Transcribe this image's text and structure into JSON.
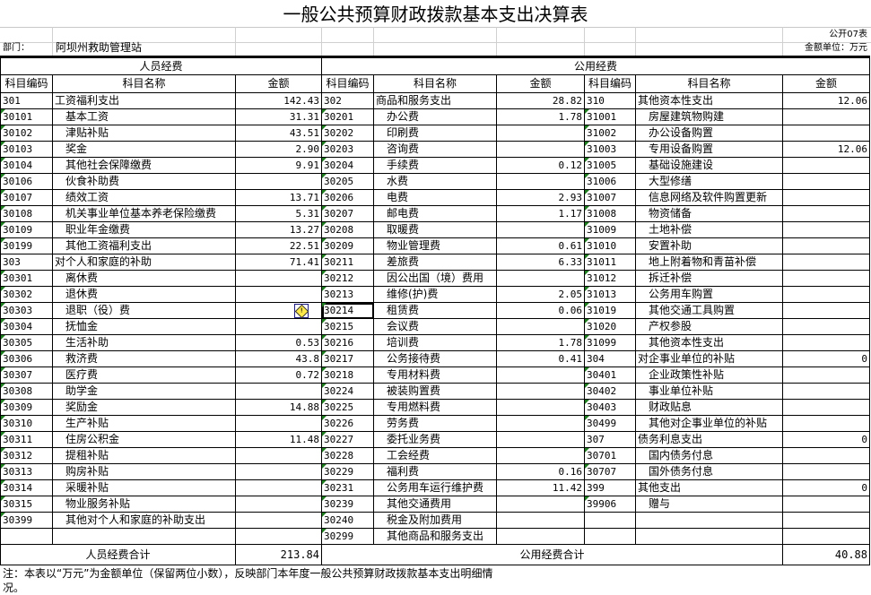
{
  "title": "一般公共预算财政拨款基本支出决算表",
  "form_no": "公开07表",
  "dept_label": "部门：",
  "dept_name": "阿坝州救助管理站",
  "unit": "金额单位：万元",
  "headers": {
    "personnel": "人员经费",
    "public": "公用经费",
    "code": "科目编码",
    "name": "科目名称",
    "amount": "金额"
  },
  "left": [
    {
      "code": "301",
      "name": "工资福利支出",
      "amount": "142.43",
      "top": true
    },
    {
      "code": "30101",
      "name": "基本工资",
      "amount": "31.31"
    },
    {
      "code": "30102",
      "name": "津贴补贴",
      "amount": "43.51"
    },
    {
      "code": "30103",
      "name": "奖金",
      "amount": "2.90"
    },
    {
      "code": "30104",
      "name": "其他社会保障缴费",
      "amount": "9.91"
    },
    {
      "code": "30106",
      "name": "伙食补助费",
      "amount": ""
    },
    {
      "code": "30107",
      "name": "绩效工资",
      "amount": "13.71"
    },
    {
      "code": "30108",
      "name": "机关事业单位基本养老保险缴费",
      "amount": "5.31"
    },
    {
      "code": "30109",
      "name": "职业年金缴费",
      "amount": "13.27"
    },
    {
      "code": "30199",
      "name": "其他工资福利支出",
      "amount": "22.51"
    },
    {
      "code": "303",
      "name": "对个人和家庭的补助",
      "amount": "71.41",
      "top": true
    },
    {
      "code": "30301",
      "name": "离休费",
      "amount": ""
    },
    {
      "code": "30302",
      "name": "退休费",
      "amount": ""
    },
    {
      "code": "30303",
      "name": "退职（役）费",
      "amount": "",
      "warn": true
    },
    {
      "code": "30304",
      "name": "抚恤金",
      "amount": ""
    },
    {
      "code": "30305",
      "name": "生活补助",
      "amount": "0.53"
    },
    {
      "code": "30306",
      "name": "救济费",
      "amount": "43.8"
    },
    {
      "code": "30307",
      "name": "医疗费",
      "amount": "0.72"
    },
    {
      "code": "30308",
      "name": "助学金",
      "amount": ""
    },
    {
      "code": "30309",
      "name": "奖励金",
      "amount": "14.88"
    },
    {
      "code": "30310",
      "name": "生产补贴",
      "amount": ""
    },
    {
      "code": "30311",
      "name": "住房公积金",
      "amount": "11.48"
    },
    {
      "code": "30312",
      "name": "提租补贴",
      "amount": ""
    },
    {
      "code": "30313",
      "name": "购房补贴",
      "amount": ""
    },
    {
      "code": "30314",
      "name": "采暖补贴",
      "amount": ""
    },
    {
      "code": "30315",
      "name": "物业服务补贴",
      "amount": ""
    },
    {
      "code": "30399",
      "name": "其他对个人和家庭的补助支出",
      "amount": ""
    },
    {
      "code": "",
      "name": "",
      "amount": ""
    }
  ],
  "middle": [
    {
      "code": "302",
      "name": "商品和服务支出",
      "amount": "28.82",
      "top": true
    },
    {
      "code": "30201",
      "name": "办公费",
      "amount": "1.78"
    },
    {
      "code": "30202",
      "name": "印刷费",
      "amount": ""
    },
    {
      "code": "30203",
      "name": "咨询费",
      "amount": ""
    },
    {
      "code": "30204",
      "name": "手续费",
      "amount": "0.12"
    },
    {
      "code": "30205",
      "name": "水费",
      "amount": ""
    },
    {
      "code": "30206",
      "name": "电费",
      "amount": "2.93"
    },
    {
      "code": "30207",
      "name": "邮电费",
      "amount": "1.17"
    },
    {
      "code": "30208",
      "name": "取暖费",
      "amount": ""
    },
    {
      "code": "30209",
      "name": "物业管理费",
      "amount": "0.61"
    },
    {
      "code": "30211",
      "name": "差旅费",
      "amount": "6.33"
    },
    {
      "code": "30212",
      "name": "因公出国（境）费用",
      "amount": ""
    },
    {
      "code": "30213",
      "name": "维修(护)费",
      "amount": "2.05"
    },
    {
      "code": "30214",
      "name": "租赁费",
      "amount": "0.06",
      "selected": true
    },
    {
      "code": "30215",
      "name": "会议费",
      "amount": ""
    },
    {
      "code": "30216",
      "name": "培训费",
      "amount": "1.78"
    },
    {
      "code": "30217",
      "name": "公务接待费",
      "amount": "0.41"
    },
    {
      "code": "30218",
      "name": "专用材料费",
      "amount": ""
    },
    {
      "code": "30224",
      "name": "被装购置费",
      "amount": ""
    },
    {
      "code": "30225",
      "name": "专用燃料费",
      "amount": ""
    },
    {
      "code": "30226",
      "name": "劳务费",
      "amount": ""
    },
    {
      "code": "30227",
      "name": "委托业务费",
      "amount": ""
    },
    {
      "code": "30228",
      "name": "工会经费",
      "amount": ""
    },
    {
      "code": "30229",
      "name": "福利费",
      "amount": "0.16"
    },
    {
      "code": "30231",
      "name": "公务用车运行维护费",
      "amount": "11.42"
    },
    {
      "code": "30239",
      "name": "其他交通费用",
      "amount": ""
    },
    {
      "code": "30240",
      "name": "税金及附加费用",
      "amount": ""
    },
    {
      "code": "30299",
      "name": "其他商品和服务支出",
      "amount": ""
    }
  ],
  "right": [
    {
      "code": "310",
      "name": "其他资本性支出",
      "amount": "12.06",
      "top": true
    },
    {
      "code": "31001",
      "name": "房屋建筑物购建",
      "amount": ""
    },
    {
      "code": "31002",
      "name": "办公设备购置",
      "amount": ""
    },
    {
      "code": "31003",
      "name": "专用设备购置",
      "amount": "12.06"
    },
    {
      "code": "31005",
      "name": "基础设施建设",
      "amount": ""
    },
    {
      "code": "31006",
      "name": "大型修缮",
      "amount": ""
    },
    {
      "code": "31007",
      "name": "信息网络及软件购置更新",
      "amount": ""
    },
    {
      "code": "31008",
      "name": "物资储备",
      "amount": ""
    },
    {
      "code": "31009",
      "name": "土地补偿",
      "amount": ""
    },
    {
      "code": "31010",
      "name": "安置补助",
      "amount": ""
    },
    {
      "code": "31011",
      "name": "地上附着物和青苗补偿",
      "amount": ""
    },
    {
      "code": "31012",
      "name": "拆迁补偿",
      "amount": ""
    },
    {
      "code": "31013",
      "name": "公务用车购置",
      "amount": ""
    },
    {
      "code": "31019",
      "name": "其他交通工具购置",
      "amount": ""
    },
    {
      "code": "31020",
      "name": "产权参股",
      "amount": ""
    },
    {
      "code": "31099",
      "name": "其他资本性支出",
      "amount": ""
    },
    {
      "code": "304",
      "name": "对企事业单位的补贴",
      "amount": "0",
      "top": true
    },
    {
      "code": "30401",
      "name": "企业政策性补贴",
      "amount": ""
    },
    {
      "code": "30402",
      "name": "事业单位补贴",
      "amount": ""
    },
    {
      "code": "30403",
      "name": "财政贴息",
      "amount": ""
    },
    {
      "code": "30499",
      "name": "其他对企事业单位的补贴",
      "amount": ""
    },
    {
      "code": "307",
      "name": "债务利息支出",
      "amount": "0",
      "top": true
    },
    {
      "code": "30701",
      "name": "国内债务付息",
      "amount": ""
    },
    {
      "code": "30707",
      "name": "国外债务付息",
      "amount": ""
    },
    {
      "code": "399",
      "name": "其他支出",
      "amount": "0",
      "top": true
    },
    {
      "code": "39906",
      "name": "赠与",
      "amount": ""
    },
    {
      "code": "",
      "name": "",
      "amount": ""
    },
    {
      "code": "",
      "name": "",
      "amount": ""
    }
  ],
  "totals": {
    "personnel_label": "人员经费合计",
    "personnel_value": "213.84",
    "public_label": "公用经费合计",
    "public_value": "40.88"
  },
  "note": "注：本表以“万元”为金额单位（保留两位小数），反映部门本年度一般公共预算财政拨款基本支出明细情况。"
}
